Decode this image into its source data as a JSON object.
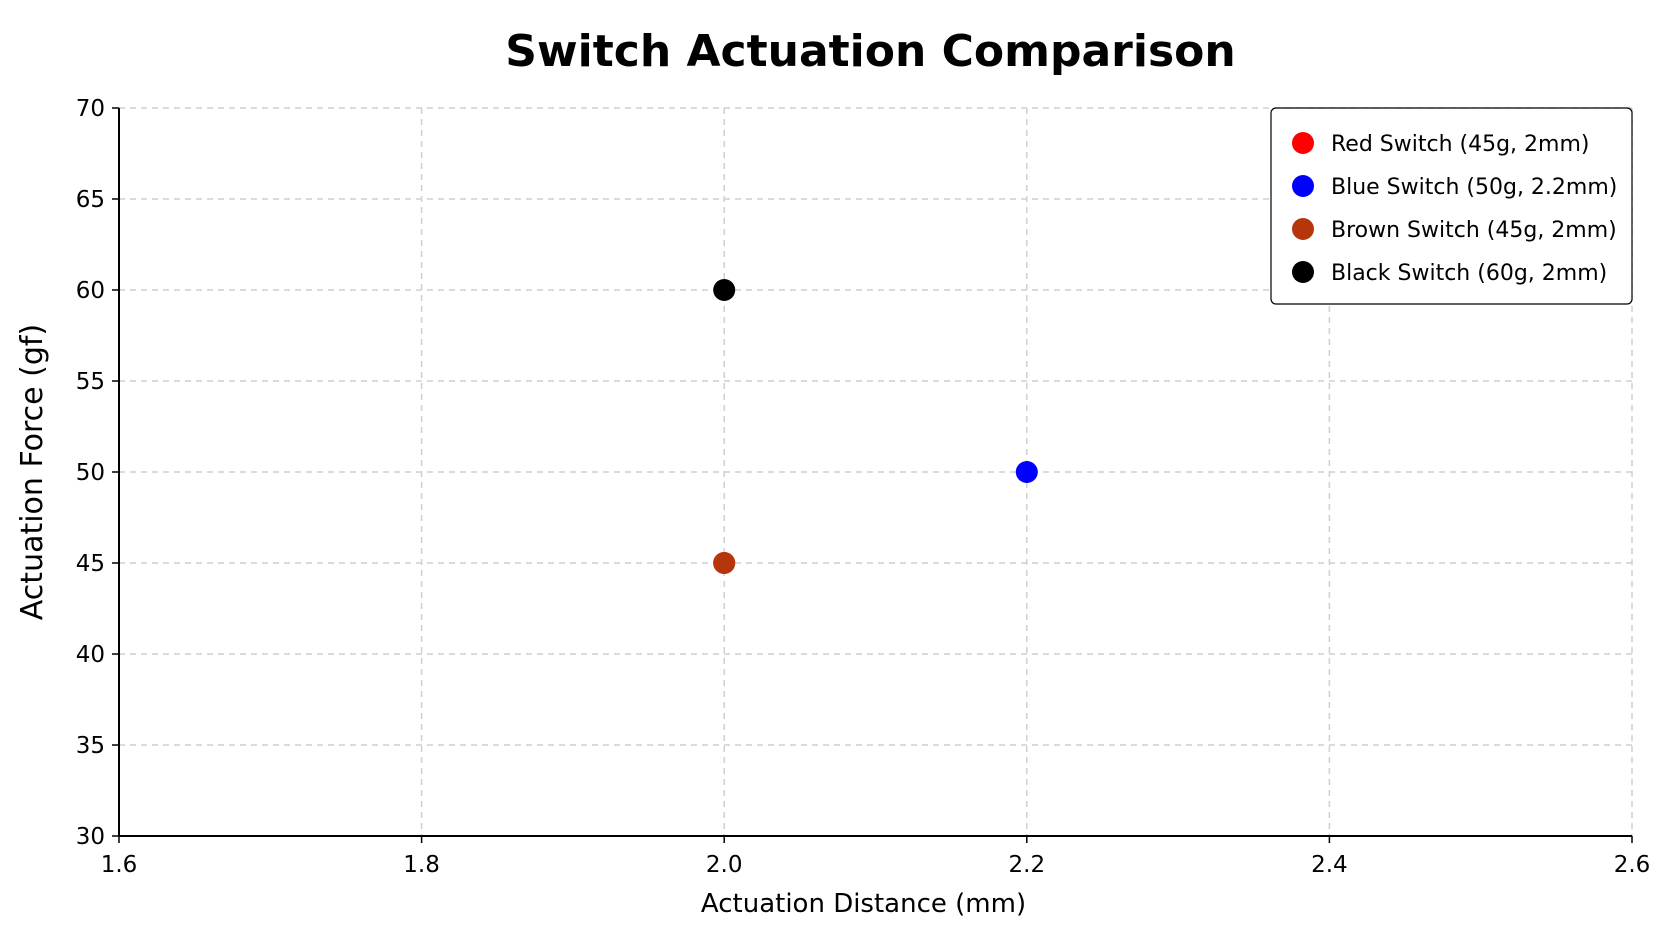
{
  "chart_data": {
    "type": "scatter",
    "title": "Switch Actuation Comparison",
    "xlabel": "Actuation Distance (mm)",
    "ylabel": "Actuation Force (gf)",
    "xlim": [
      1.6,
      2.6
    ],
    "ylim": [
      30,
      70
    ],
    "xticks": [
      "1.6",
      "1.8",
      "2.0",
      "2.2",
      "2.4",
      "2.6"
    ],
    "yticks": [
      "30",
      "35",
      "40",
      "45",
      "50",
      "55",
      "60",
      "65",
      "70"
    ],
    "grid": true,
    "legend_position": "top-right",
    "series": [
      {
        "name": "Red Switch (45g, 2mm)",
        "color": "#ff0000",
        "points": [
          {
            "x": 2.0,
            "y": 45
          }
        ]
      },
      {
        "name": "Blue Switch (50g, 2.2mm)",
        "color": "#0000ff",
        "points": [
          {
            "x": 2.2,
            "y": 50
          }
        ]
      },
      {
        "name": "Brown Switch (45g, 2mm)",
        "color": "#b5360a",
        "points": [
          {
            "x": 2.0,
            "y": 45
          }
        ]
      },
      {
        "name": "Black Switch (60g, 2mm)",
        "color": "#000000",
        "points": [
          {
            "x": 2.0,
            "y": 60
          }
        ]
      }
    ]
  }
}
